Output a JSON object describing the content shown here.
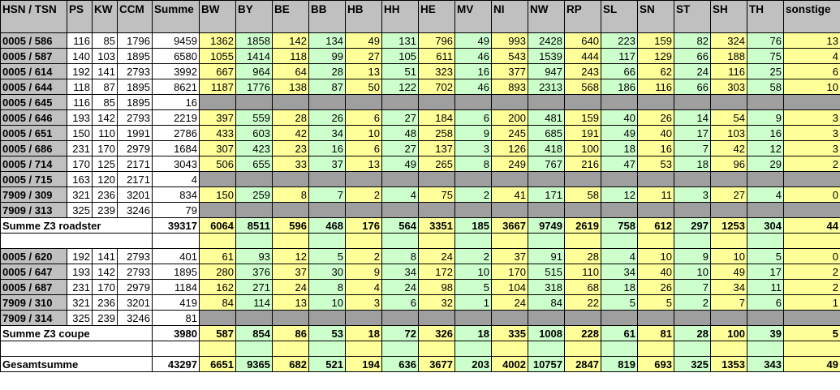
{
  "headers": [
    "HSN / TSN",
    "PS",
    "KW",
    "CCM",
    "Summe",
    "BW",
    "BY",
    "BE",
    "BB",
    "HB",
    "HH",
    "HE",
    "MV",
    "NI",
    "NW",
    "RP",
    "SL",
    "SN",
    "ST",
    "SH",
    "TH",
    "sonstige"
  ],
  "column_colors": {
    "yellow": "#ffff99",
    "green": "#ccffcc",
    "header": "#c0c0c0"
  },
  "rows": [
    {
      "type": "data",
      "id": "0005 / 586",
      "ps": "116",
      "kw": "85",
      "ccm": "1796",
      "summe": "9459",
      "states": [
        "1362",
        "1858",
        "142",
        "134",
        "49",
        "131",
        "796",
        "49",
        "993",
        "2428",
        "640",
        "223",
        "159",
        "82",
        "324",
        "76",
        "13"
      ]
    },
    {
      "type": "data",
      "id": "0005 / 587",
      "ps": "140",
      "kw": "103",
      "ccm": "1895",
      "summe": "6580",
      "states": [
        "1055",
        "1414",
        "118",
        "99",
        "27",
        "105",
        "611",
        "46",
        "543",
        "1539",
        "444",
        "117",
        "129",
        "66",
        "188",
        "75",
        "4"
      ]
    },
    {
      "type": "data",
      "id": "0005 / 614",
      "ps": "192",
      "kw": "141",
      "ccm": "2793",
      "summe": "3992",
      "states": [
        "667",
        "964",
        "64",
        "28",
        "13",
        "51",
        "323",
        "16",
        "377",
        "947",
        "243",
        "66",
        "62",
        "24",
        "116",
        "25",
        "6"
      ]
    },
    {
      "type": "data",
      "id": "0005 / 644",
      "ps": "118",
      "kw": "87",
      "ccm": "1895",
      "summe": "8621",
      "states": [
        "1187",
        "1776",
        "138",
        "87",
        "50",
        "122",
        "702",
        "46",
        "893",
        "2313",
        "568",
        "186",
        "116",
        "66",
        "303",
        "58",
        "10"
      ]
    },
    {
      "type": "data",
      "id": "0005 / 645",
      "ps": "116",
      "kw": "85",
      "ccm": "1895",
      "summe": "16",
      "states": null
    },
    {
      "type": "data",
      "id": "0005 / 646",
      "ps": "193",
      "kw": "142",
      "ccm": "2793",
      "summe": "2219",
      "states": [
        "397",
        "559",
        "28",
        "26",
        "6",
        "27",
        "184",
        "6",
        "200",
        "481",
        "159",
        "40",
        "26",
        "14",
        "54",
        "9",
        "3"
      ]
    },
    {
      "type": "data",
      "id": "0005 / 651",
      "ps": "150",
      "kw": "110",
      "ccm": "1991",
      "summe": "2786",
      "states": [
        "433",
        "603",
        "42",
        "34",
        "10",
        "48",
        "258",
        "9",
        "245",
        "685",
        "191",
        "49",
        "40",
        "17",
        "103",
        "16",
        "3"
      ]
    },
    {
      "type": "data",
      "id": "0005 / 686",
      "ps": "231",
      "kw": "170",
      "ccm": "2979",
      "summe": "1684",
      "states": [
        "307",
        "423",
        "23",
        "16",
        "6",
        "27",
        "137",
        "3",
        "126",
        "418",
        "100",
        "18",
        "16",
        "7",
        "42",
        "12",
        "3"
      ]
    },
    {
      "type": "data",
      "id": "0005 / 714",
      "ps": "170",
      "kw": "125",
      "ccm": "2171",
      "summe": "3043",
      "states": [
        "506",
        "655",
        "33",
        "37",
        "13",
        "49",
        "265",
        "8",
        "249",
        "767",
        "216",
        "47",
        "53",
        "18",
        "96",
        "29",
        "2"
      ]
    },
    {
      "type": "data",
      "id": "0005 / 715",
      "ps": "163",
      "kw": "120",
      "ccm": "2171",
      "summe": "4",
      "states": null
    },
    {
      "type": "data",
      "id": "7909 / 309",
      "ps": "321",
      "kw": "236",
      "ccm": "3201",
      "summe": "834",
      "states": [
        "150",
        "259",
        "8",
        "7",
        "2",
        "4",
        "75",
        "2",
        "41",
        "171",
        "58",
        "12",
        "11",
        "3",
        "27",
        "4",
        "0"
      ]
    },
    {
      "type": "data",
      "id": "7909 / 313",
      "ps": "325",
      "kw": "239",
      "ccm": "3246",
      "summe": "79",
      "states": null
    },
    {
      "type": "sum",
      "label": "Summe Z3 roadster",
      "summe": "39317",
      "states": [
        "6064",
        "8511",
        "596",
        "468",
        "176",
        "564",
        "3351",
        "185",
        "3667",
        "9749",
        "2619",
        "758",
        "612",
        "297",
        "1253",
        "304",
        "44"
      ]
    },
    {
      "type": "blank"
    },
    {
      "type": "data",
      "id": "0005 / 620",
      "ps": "192",
      "kw": "141",
      "ccm": "2793",
      "summe": "401",
      "states": [
        "61",
        "93",
        "12",
        "5",
        "2",
        "8",
        "24",
        "2",
        "37",
        "91",
        "28",
        "4",
        "10",
        "9",
        "10",
        "5",
        "0"
      ]
    },
    {
      "type": "data",
      "id": "0005 / 647",
      "ps": "193",
      "kw": "142",
      "ccm": "2793",
      "summe": "1895",
      "states": [
        "280",
        "376",
        "37",
        "30",
        "9",
        "34",
        "172",
        "10",
        "170",
        "515",
        "110",
        "34",
        "40",
        "10",
        "49",
        "17",
        "2"
      ]
    },
    {
      "type": "data",
      "id": "0005 / 687",
      "ps": "231",
      "kw": "170",
      "ccm": "2979",
      "summe": "1184",
      "states": [
        "162",
        "271",
        "24",
        "8",
        "4",
        "24",
        "98",
        "5",
        "104",
        "318",
        "68",
        "18",
        "26",
        "7",
        "34",
        "11",
        "2"
      ]
    },
    {
      "type": "data",
      "id": "7909 / 310",
      "ps": "321",
      "kw": "236",
      "ccm": "3201",
      "summe": "419",
      "states": [
        "84",
        "114",
        "13",
        "10",
        "3",
        "6",
        "32",
        "1",
        "24",
        "84",
        "22",
        "5",
        "5",
        "2",
        "7",
        "6",
        "1"
      ]
    },
    {
      "type": "data",
      "id": "7909 / 314",
      "ps": "325",
      "kw": "239",
      "ccm": "3246",
      "summe": "81",
      "states": null
    },
    {
      "type": "sum",
      "label": "Summe Z3 coupe",
      "summe": "3980",
      "states": [
        "587",
        "854",
        "86",
        "53",
        "18",
        "72",
        "326",
        "18",
        "335",
        "1008",
        "228",
        "61",
        "81",
        "28",
        "100",
        "39",
        "5"
      ]
    },
    {
      "type": "blank"
    },
    {
      "type": "sum",
      "label": "Gesamtsumme",
      "summe": "43297",
      "states": [
        "6651",
        "9365",
        "682",
        "521",
        "194",
        "636",
        "3677",
        "203",
        "4002",
        "10757",
        "2847",
        "819",
        "693",
        "325",
        "1353",
        "343",
        "49"
      ]
    }
  ]
}
